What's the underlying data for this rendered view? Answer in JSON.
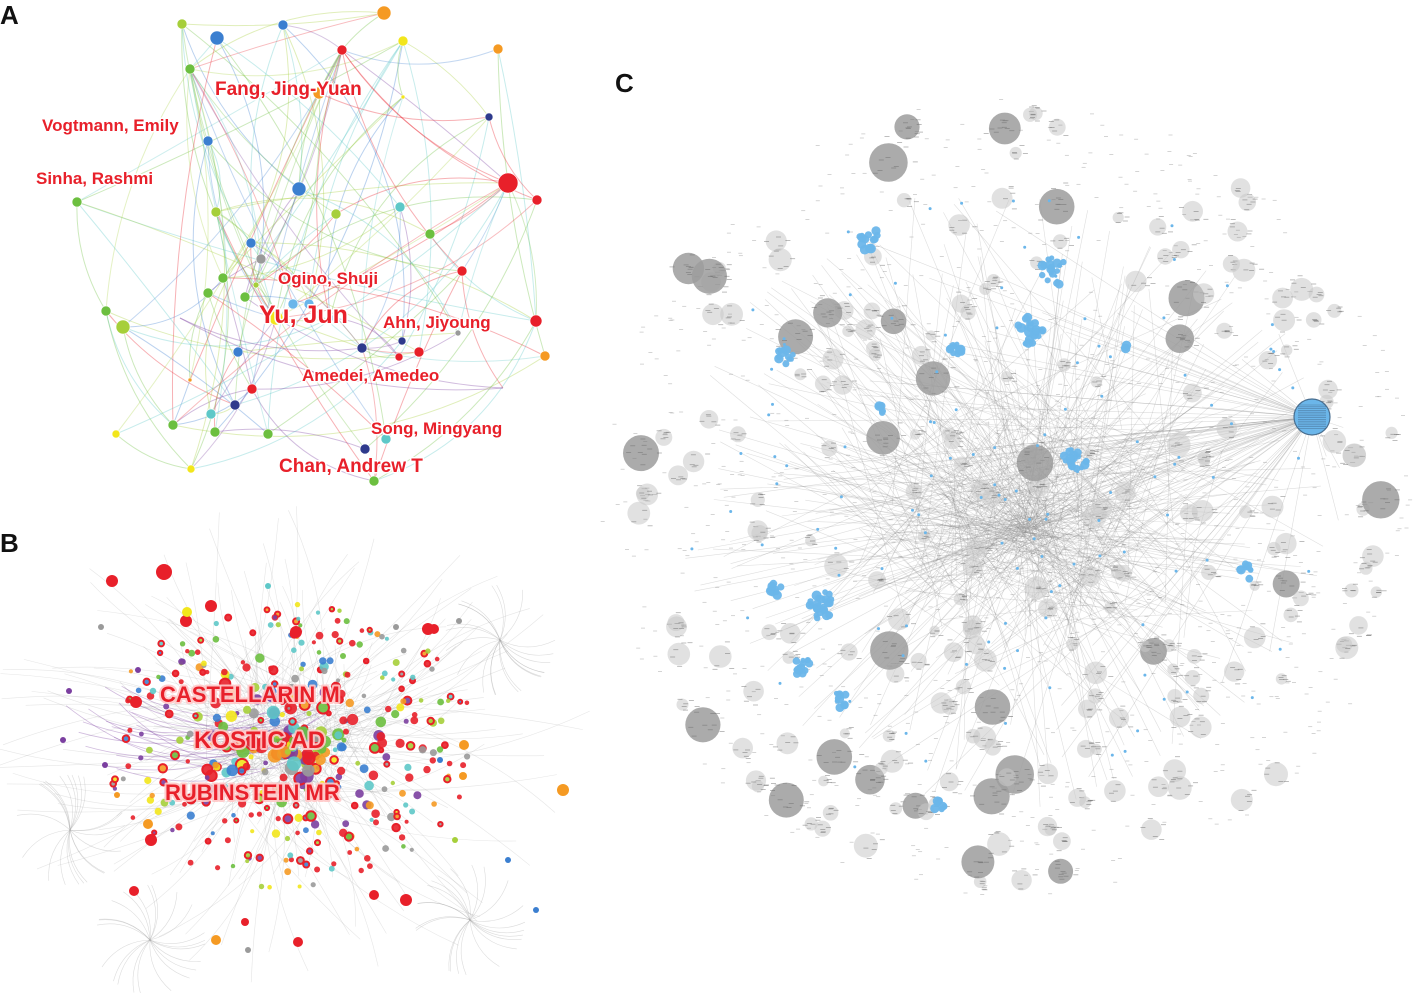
{
  "panels": {
    "a": {
      "letter": "A",
      "labels": [
        {
          "text": "Fang, Jing-Yuan",
          "size": 19
        },
        {
          "text": "Vogtmann, Emily",
          "size": 17
        },
        {
          "text": "Sinha, Rashmi",
          "size": 17
        },
        {
          "text": "Ogino, Shuji",
          "size": 17
        },
        {
          "text": "Yu, Jun",
          "size": 25
        },
        {
          "text": "Ahn, Jiyoung",
          "size": 17
        },
        {
          "text": "Amedei, Amedeo",
          "size": 17
        },
        {
          "text": "Song, Mingyang",
          "size": 17
        },
        {
          "text": "Chan, Andrew T",
          "size": 19
        }
      ]
    },
    "b": {
      "letter": "B",
      "labels": [
        {
          "text": "CASTELLARIN M",
          "size": 22
        },
        {
          "text": "KOSTIC AD",
          "size": 24
        },
        {
          "text": "RUBINSTEIN MR",
          "size": 22
        }
      ]
    },
    "c": {
      "letter": "C"
    }
  },
  "colors": {
    "label": "#e8202a",
    "red": "#e8202a",
    "green": "#6cbf3f",
    "blue": "#3b7fd0",
    "navy": "#2e3a8c",
    "orange": "#f59a23",
    "yellow": "#f2e61c",
    "lime": "#a6cf3a",
    "teal": "#5ec8c8",
    "purple": "#7b3fa0",
    "gray": "#9a9a9a",
    "lightblue": "#6bb6ea"
  }
}
